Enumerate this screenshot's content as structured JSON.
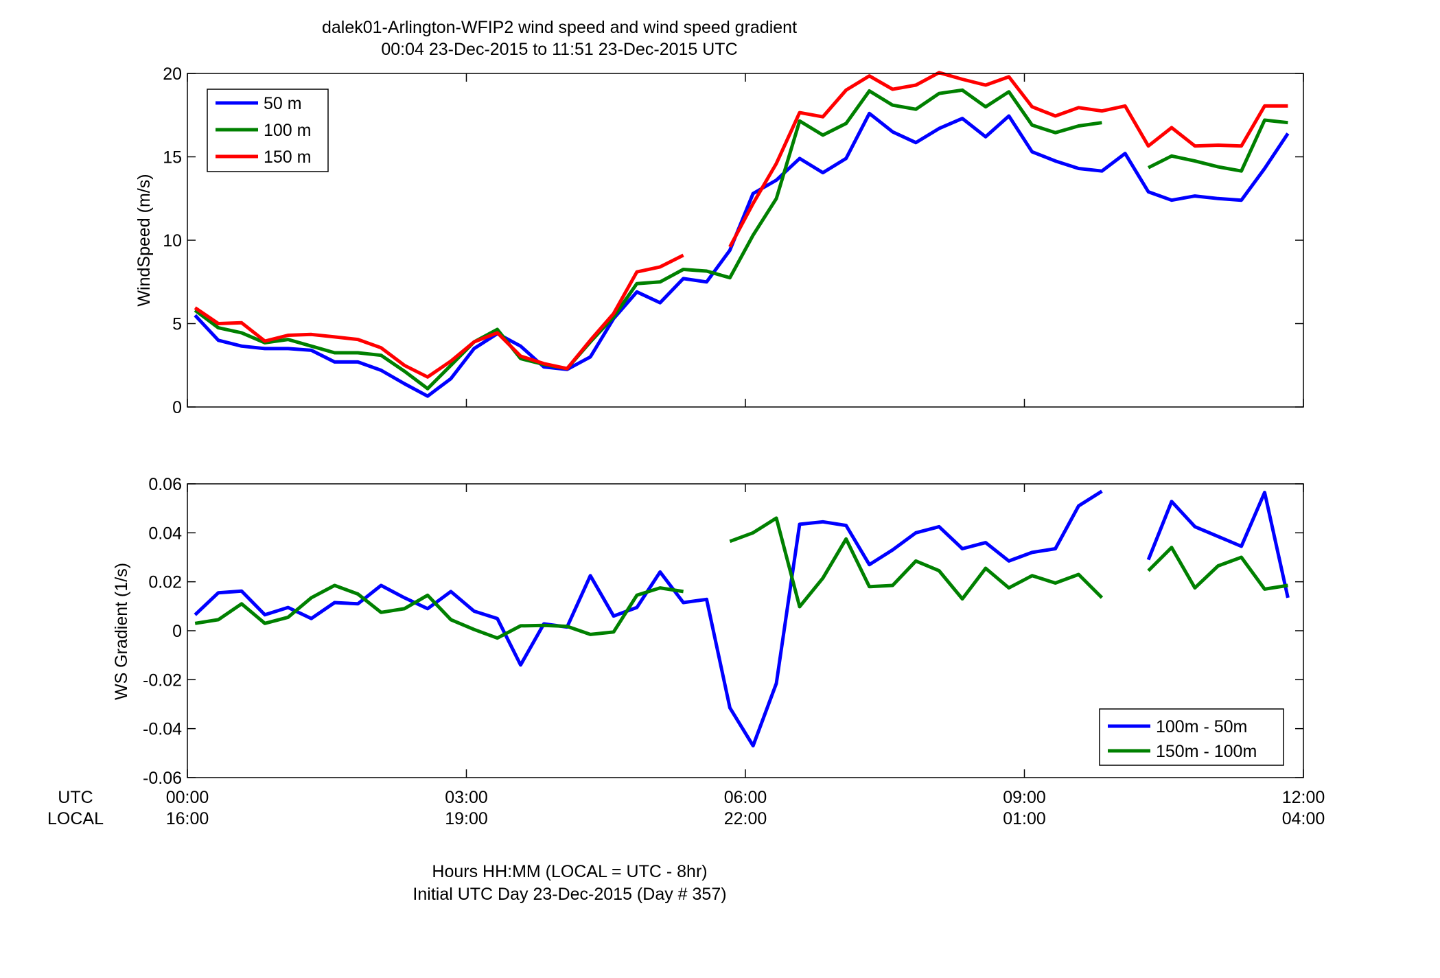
{
  "figure": {
    "title_line1": "dalek01-Arlington-WFIP2  wind speed and wind speed gradient",
    "title_line2": "00:04 23-Dec-2015 to 11:51 23-Dec-2015  UTC",
    "xlabel_line1": "Hours HH:MM  (LOCAL = UTC - 8hr)",
    "xlabel_line2": "Initial UTC Day 23-Dec-2015 (Day # 357)",
    "row_label_utc": "UTC",
    "row_label_local": "LOCAL",
    "x_ticks_utc": [
      "00:00",
      "03:00",
      "06:00",
      "09:00",
      "12:00"
    ],
    "x_ticks_local": [
      "16:00",
      "19:00",
      "22:00",
      "01:00",
      "04:00"
    ]
  },
  "chart_data": [
    {
      "type": "line",
      "ylabel": "WindSpeed (m/s)",
      "xlim": [
        0,
        12
      ],
      "ylim": [
        0,
        20
      ],
      "yticks": [
        0,
        5,
        10,
        15,
        20
      ],
      "ytick_labels": [
        "0",
        "5",
        "10",
        "15",
        "20"
      ],
      "grid": false,
      "legend_position": "top-left",
      "x_unit": "hours UTC",
      "series": [
        {
          "name": "50 m",
          "color": "#0000ff",
          "points": [
            [
              0.083,
              5.5
            ],
            [
              0.333,
              4.0
            ],
            [
              0.583,
              3.65
            ],
            [
              0.833,
              3.5
            ],
            [
              1.083,
              3.5
            ],
            [
              1.333,
              3.4
            ],
            [
              1.583,
              2.7
            ],
            [
              1.833,
              2.7
            ],
            [
              2.083,
              2.2
            ],
            [
              2.333,
              1.4
            ],
            [
              2.583,
              0.65
            ],
            [
              2.833,
              1.7
            ],
            [
              3.083,
              3.5
            ],
            [
              3.333,
              4.4
            ],
            [
              3.583,
              3.65
            ],
            [
              3.833,
              2.4
            ],
            [
              4.083,
              2.25
            ],
            [
              4.333,
              3.0
            ],
            [
              4.583,
              5.3
            ],
            [
              4.833,
              6.9
            ],
            [
              5.083,
              6.25
            ],
            [
              5.333,
              7.7
            ],
            [
              5.583,
              7.5
            ],
            [
              5.833,
              9.4
            ],
            [
              6.083,
              12.8
            ],
            [
              6.333,
              13.6
            ],
            [
              6.583,
              14.9
            ],
            [
              6.833,
              14.05
            ],
            [
              7.083,
              14.9
            ],
            [
              7.333,
              17.6
            ],
            [
              7.583,
              16.5
            ],
            [
              7.833,
              15.85
            ],
            [
              8.083,
              16.7
            ],
            [
              8.333,
              17.3
            ],
            [
              8.583,
              16.2
            ],
            [
              8.833,
              17.45
            ],
            [
              9.083,
              15.3
            ],
            [
              9.333,
              14.75
            ],
            [
              9.583,
              14.3
            ],
            [
              9.833,
              14.15
            ],
            [
              10.083,
              15.2
            ],
            [
              10.333,
              12.9
            ],
            [
              10.583,
              12.4
            ],
            [
              10.833,
              12.65
            ],
            [
              11.083,
              12.5
            ],
            [
              11.333,
              12.4
            ],
            [
              11.583,
              14.3
            ],
            [
              11.833,
              16.4
            ]
          ]
        },
        {
          "name": "100 m",
          "color": "#008000",
          "points": [
            [
              0.083,
              5.8
            ],
            [
              0.333,
              4.75
            ],
            [
              0.583,
              4.45
            ],
            [
              0.833,
              3.85
            ],
            [
              1.083,
              4.05
            ],
            [
              1.333,
              3.65
            ],
            [
              1.583,
              3.25
            ],
            [
              1.833,
              3.25
            ],
            [
              2.083,
              3.1
            ],
            [
              2.333,
              2.15
            ],
            [
              2.583,
              1.1
            ],
            [
              2.833,
              2.5
            ],
            [
              3.083,
              3.9
            ],
            [
              3.333,
              4.65
            ],
            [
              3.583,
              2.9
            ],
            [
              3.833,
              2.55
            ],
            [
              4.083,
              2.3
            ],
            [
              4.333,
              3.9
            ],
            [
              4.583,
              5.4
            ],
            [
              4.833,
              7.4
            ],
            [
              5.083,
              7.5
            ],
            [
              5.333,
              8.25
            ],
            [
              5.583,
              8.15
            ],
            [
              5.833,
              7.75
            ],
            [
              6.083,
              10.3
            ],
            [
              6.333,
              12.5
            ],
            [
              6.583,
              17.15
            ],
            [
              6.833,
              16.3
            ],
            [
              7.083,
              17.0
            ],
            [
              7.333,
              18.95
            ],
            [
              7.583,
              18.1
            ],
            [
              7.833,
              17.85
            ],
            [
              8.083,
              18.8
            ],
            [
              8.333,
              19.0
            ],
            [
              8.583,
              18.0
            ],
            [
              8.833,
              18.9
            ],
            [
              9.083,
              16.9
            ],
            [
              9.333,
              16.45
            ],
            [
              9.583,
              16.85
            ],
            [
              9.833,
              17.05
            ],
            null,
            [
              10.333,
              14.35
            ],
            [
              10.583,
              15.05
            ],
            [
              10.833,
              14.75
            ],
            [
              11.083,
              14.4
            ],
            [
              11.333,
              14.15
            ],
            [
              11.583,
              17.2
            ],
            [
              11.833,
              17.05
            ]
          ]
        },
        {
          "name": "150 m",
          "color": "#ff0000",
          "points": [
            [
              0.083,
              5.95
            ],
            [
              0.333,
              5.0
            ],
            [
              0.583,
              5.05
            ],
            [
              0.833,
              3.95
            ],
            [
              1.083,
              4.3
            ],
            [
              1.333,
              4.35
            ],
            [
              1.583,
              4.2
            ],
            [
              1.833,
              4.05
            ],
            [
              2.083,
              3.55
            ],
            [
              2.333,
              2.5
            ],
            [
              2.583,
              1.8
            ],
            [
              2.833,
              2.75
            ],
            [
              3.083,
              3.9
            ],
            [
              3.333,
              4.45
            ],
            [
              3.583,
              3.05
            ],
            [
              3.833,
              2.6
            ],
            [
              4.083,
              2.3
            ],
            [
              4.333,
              4.0
            ],
            [
              4.583,
              5.6
            ],
            [
              4.833,
              8.1
            ],
            [
              5.083,
              8.4
            ],
            [
              5.333,
              9.1
            ],
            null,
            [
              5.833,
              9.6
            ],
            [
              6.083,
              12.2
            ],
            [
              6.333,
              14.6
            ],
            [
              6.583,
              17.65
            ],
            [
              6.833,
              17.4
            ],
            [
              7.083,
              19.0
            ],
            [
              7.333,
              19.85
            ],
            [
              7.583,
              19.05
            ],
            [
              7.833,
              19.3
            ],
            [
              8.083,
              20.05
            ],
            [
              8.333,
              19.65
            ],
            [
              8.583,
              19.3
            ],
            [
              8.833,
              19.8
            ],
            [
              9.083,
              18.0
            ],
            [
              9.333,
              17.45
            ],
            [
              9.583,
              17.95
            ],
            [
              9.833,
              17.75
            ],
            [
              10.083,
              18.05
            ],
            [
              10.333,
              15.65
            ],
            [
              10.583,
              16.75
            ],
            [
              10.833,
              15.65
            ],
            [
              11.083,
              15.7
            ],
            [
              11.333,
              15.65
            ],
            [
              11.583,
              18.05
            ],
            [
              11.833,
              18.05
            ]
          ]
        }
      ]
    },
    {
      "type": "line",
      "ylabel": "WS Gradient (1/s)",
      "xlim": [
        0,
        12
      ],
      "ylim": [
        -0.06,
        0.06
      ],
      "yticks": [
        -0.06,
        -0.04,
        -0.02,
        0,
        0.02,
        0.04,
        0.06
      ],
      "ytick_labels": [
        "-0.06",
        "-0.04",
        "-0.02",
        "0",
        "0.02",
        "0.04",
        "0.06"
      ],
      "grid": false,
      "legend_position": "bottom-right",
      "x_unit": "hours UTC",
      "series": [
        {
          "name": "100m - 50m",
          "color": "#0000ff",
          "points": [
            [
              0.083,
              0.0065
            ],
            [
              0.333,
              0.0155
            ],
            [
              0.583,
              0.0162
            ],
            [
              0.833,
              0.0065
            ],
            [
              1.083,
              0.0095
            ],
            [
              1.333,
              0.005
            ],
            [
              1.583,
              0.0115
            ],
            [
              1.833,
              0.011
            ],
            [
              2.083,
              0.0185
            ],
            [
              2.333,
              0.0135
            ],
            [
              2.583,
              0.009
            ],
            [
              2.833,
              0.016
            ],
            [
              3.083,
              0.008
            ],
            [
              3.333,
              0.005
            ],
            [
              3.583,
              -0.014
            ],
            [
              3.833,
              0.0028
            ],
            [
              4.083,
              0.0015
            ],
            [
              4.333,
              0.0225
            ],
            [
              4.583,
              0.006
            ],
            [
              4.833,
              0.0095
            ],
            [
              5.083,
              0.024
            ],
            [
              5.333,
              0.0115
            ],
            [
              5.583,
              0.0128
            ],
            [
              5.833,
              -0.0315
            ],
            [
              6.083,
              -0.047
            ],
            [
              6.333,
              -0.0215
            ],
            [
              6.583,
              0.0435
            ],
            [
              6.833,
              0.0445
            ],
            [
              7.083,
              0.043
            ],
            [
              7.333,
              0.027
            ],
            [
              7.583,
              0.033
            ],
            [
              7.833,
              0.04
            ],
            [
              8.083,
              0.0425
            ],
            [
              8.333,
              0.0335
            ],
            [
              8.583,
              0.036
            ],
            [
              8.833,
              0.0285
            ],
            [
              9.083,
              0.032
            ],
            [
              9.333,
              0.0335
            ],
            [
              9.583,
              0.051
            ],
            [
              9.833,
              0.057
            ],
            null,
            [
              10.333,
              0.029
            ],
            [
              10.583,
              0.0528
            ],
            [
              10.833,
              0.0425
            ],
            [
              11.083,
              0.0385
            ],
            [
              11.333,
              0.0345
            ],
            [
              11.583,
              0.0565
            ],
            [
              11.833,
              0.0135
            ]
          ]
        },
        {
          "name": "150m - 100m",
          "color": "#008000",
          "points": [
            [
              0.083,
              0.003
            ],
            [
              0.333,
              0.0045
            ],
            [
              0.583,
              0.011
            ],
            [
              0.833,
              0.003
            ],
            [
              1.083,
              0.0055
            ],
            [
              1.333,
              0.0135
            ],
            [
              1.583,
              0.0185
            ],
            [
              1.833,
              0.015
            ],
            [
              2.083,
              0.0075
            ],
            [
              2.333,
              0.009
            ],
            [
              2.583,
              0.0145
            ],
            [
              2.833,
              0.0045
            ],
            [
              3.083,
              0.0005
            ],
            [
              3.333,
              -0.003
            ],
            [
              3.583,
              0.002
            ],
            [
              3.833,
              0.0022
            ],
            [
              4.083,
              0.0018
            ],
            [
              4.333,
              -0.0015
            ],
            [
              4.583,
              -0.0005
            ],
            [
              4.833,
              0.0145
            ],
            [
              5.083,
              0.0175
            ],
            [
              5.333,
              0.016
            ],
            null,
            [
              5.833,
              0.0365
            ],
            [
              6.083,
              0.04
            ],
            [
              6.333,
              0.046
            ],
            [
              6.583,
              0.0098
            ],
            [
              6.833,
              0.0215
            ],
            [
              7.083,
              0.0375
            ],
            [
              7.333,
              0.018
            ],
            [
              7.583,
              0.0185
            ],
            [
              7.833,
              0.0285
            ],
            [
              8.083,
              0.0245
            ],
            [
              8.333,
              0.013
            ],
            [
              8.583,
              0.0255
            ],
            [
              8.833,
              0.0175
            ],
            [
              9.083,
              0.0225
            ],
            [
              9.333,
              0.0195
            ],
            [
              9.583,
              0.023
            ],
            [
              9.833,
              0.0135
            ],
            null,
            [
              10.333,
              0.0245
            ],
            [
              10.583,
              0.034
            ],
            [
              10.833,
              0.0175
            ],
            [
              11.083,
              0.0265
            ],
            [
              11.333,
              0.03
            ],
            [
              11.583,
              0.017
            ],
            [
              11.833,
              0.0185
            ]
          ]
        }
      ]
    }
  ]
}
